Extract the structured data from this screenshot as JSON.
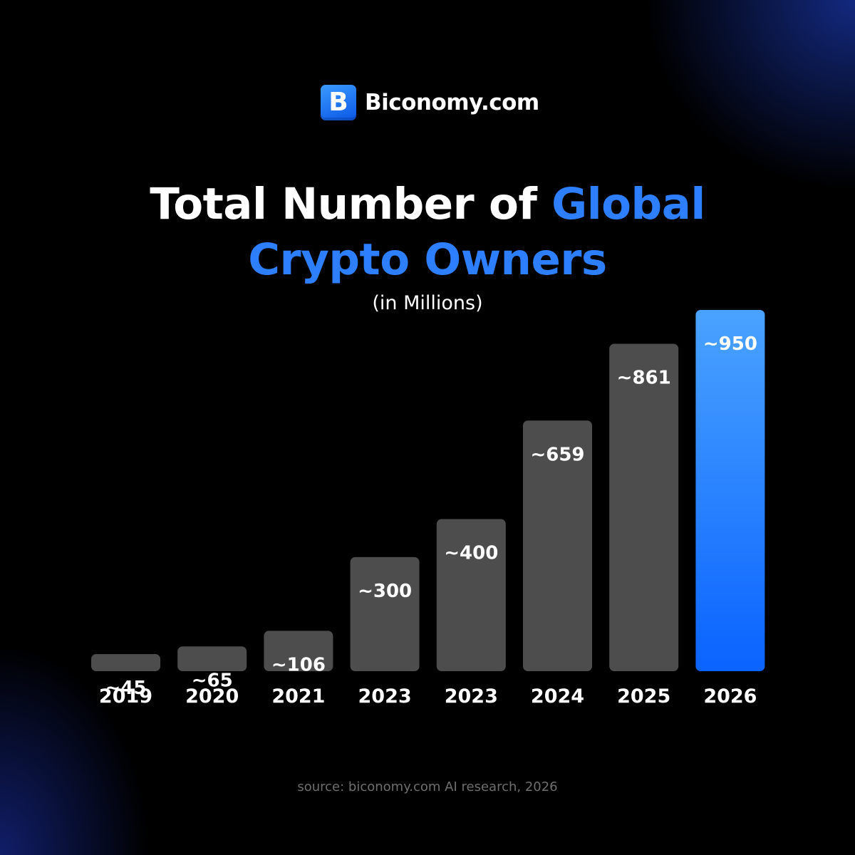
{
  "brand": {
    "logo_letter": "B",
    "name": "Biconomy.com"
  },
  "title": {
    "white": "Total Number of ",
    "blue_line1": "Global",
    "blue_line2": "Crypto Owners"
  },
  "subtitle": "(in Millions)",
  "source": "source: biconomy.com AI research, 2026",
  "colors": {
    "bar": "#4d4d4d",
    "highlight_top": "#4aa3ff",
    "highlight_bottom": "#0a63ff",
    "accent": "#2e7fff"
  },
  "chart_data": {
    "type": "bar",
    "categories": [
      "2019",
      "2020",
      "2021",
      "2023",
      "2023",
      "2024",
      "2025",
      "2026"
    ],
    "values": [
      45,
      65,
      106,
      300,
      400,
      659,
      861,
      950
    ],
    "labels": [
      "~45",
      "~65",
      "~106",
      "~300",
      "~400",
      "~659",
      "~861",
      "~950"
    ],
    "highlight_index": 7,
    "xlabel": "",
    "ylabel": "",
    "grid": false
  }
}
